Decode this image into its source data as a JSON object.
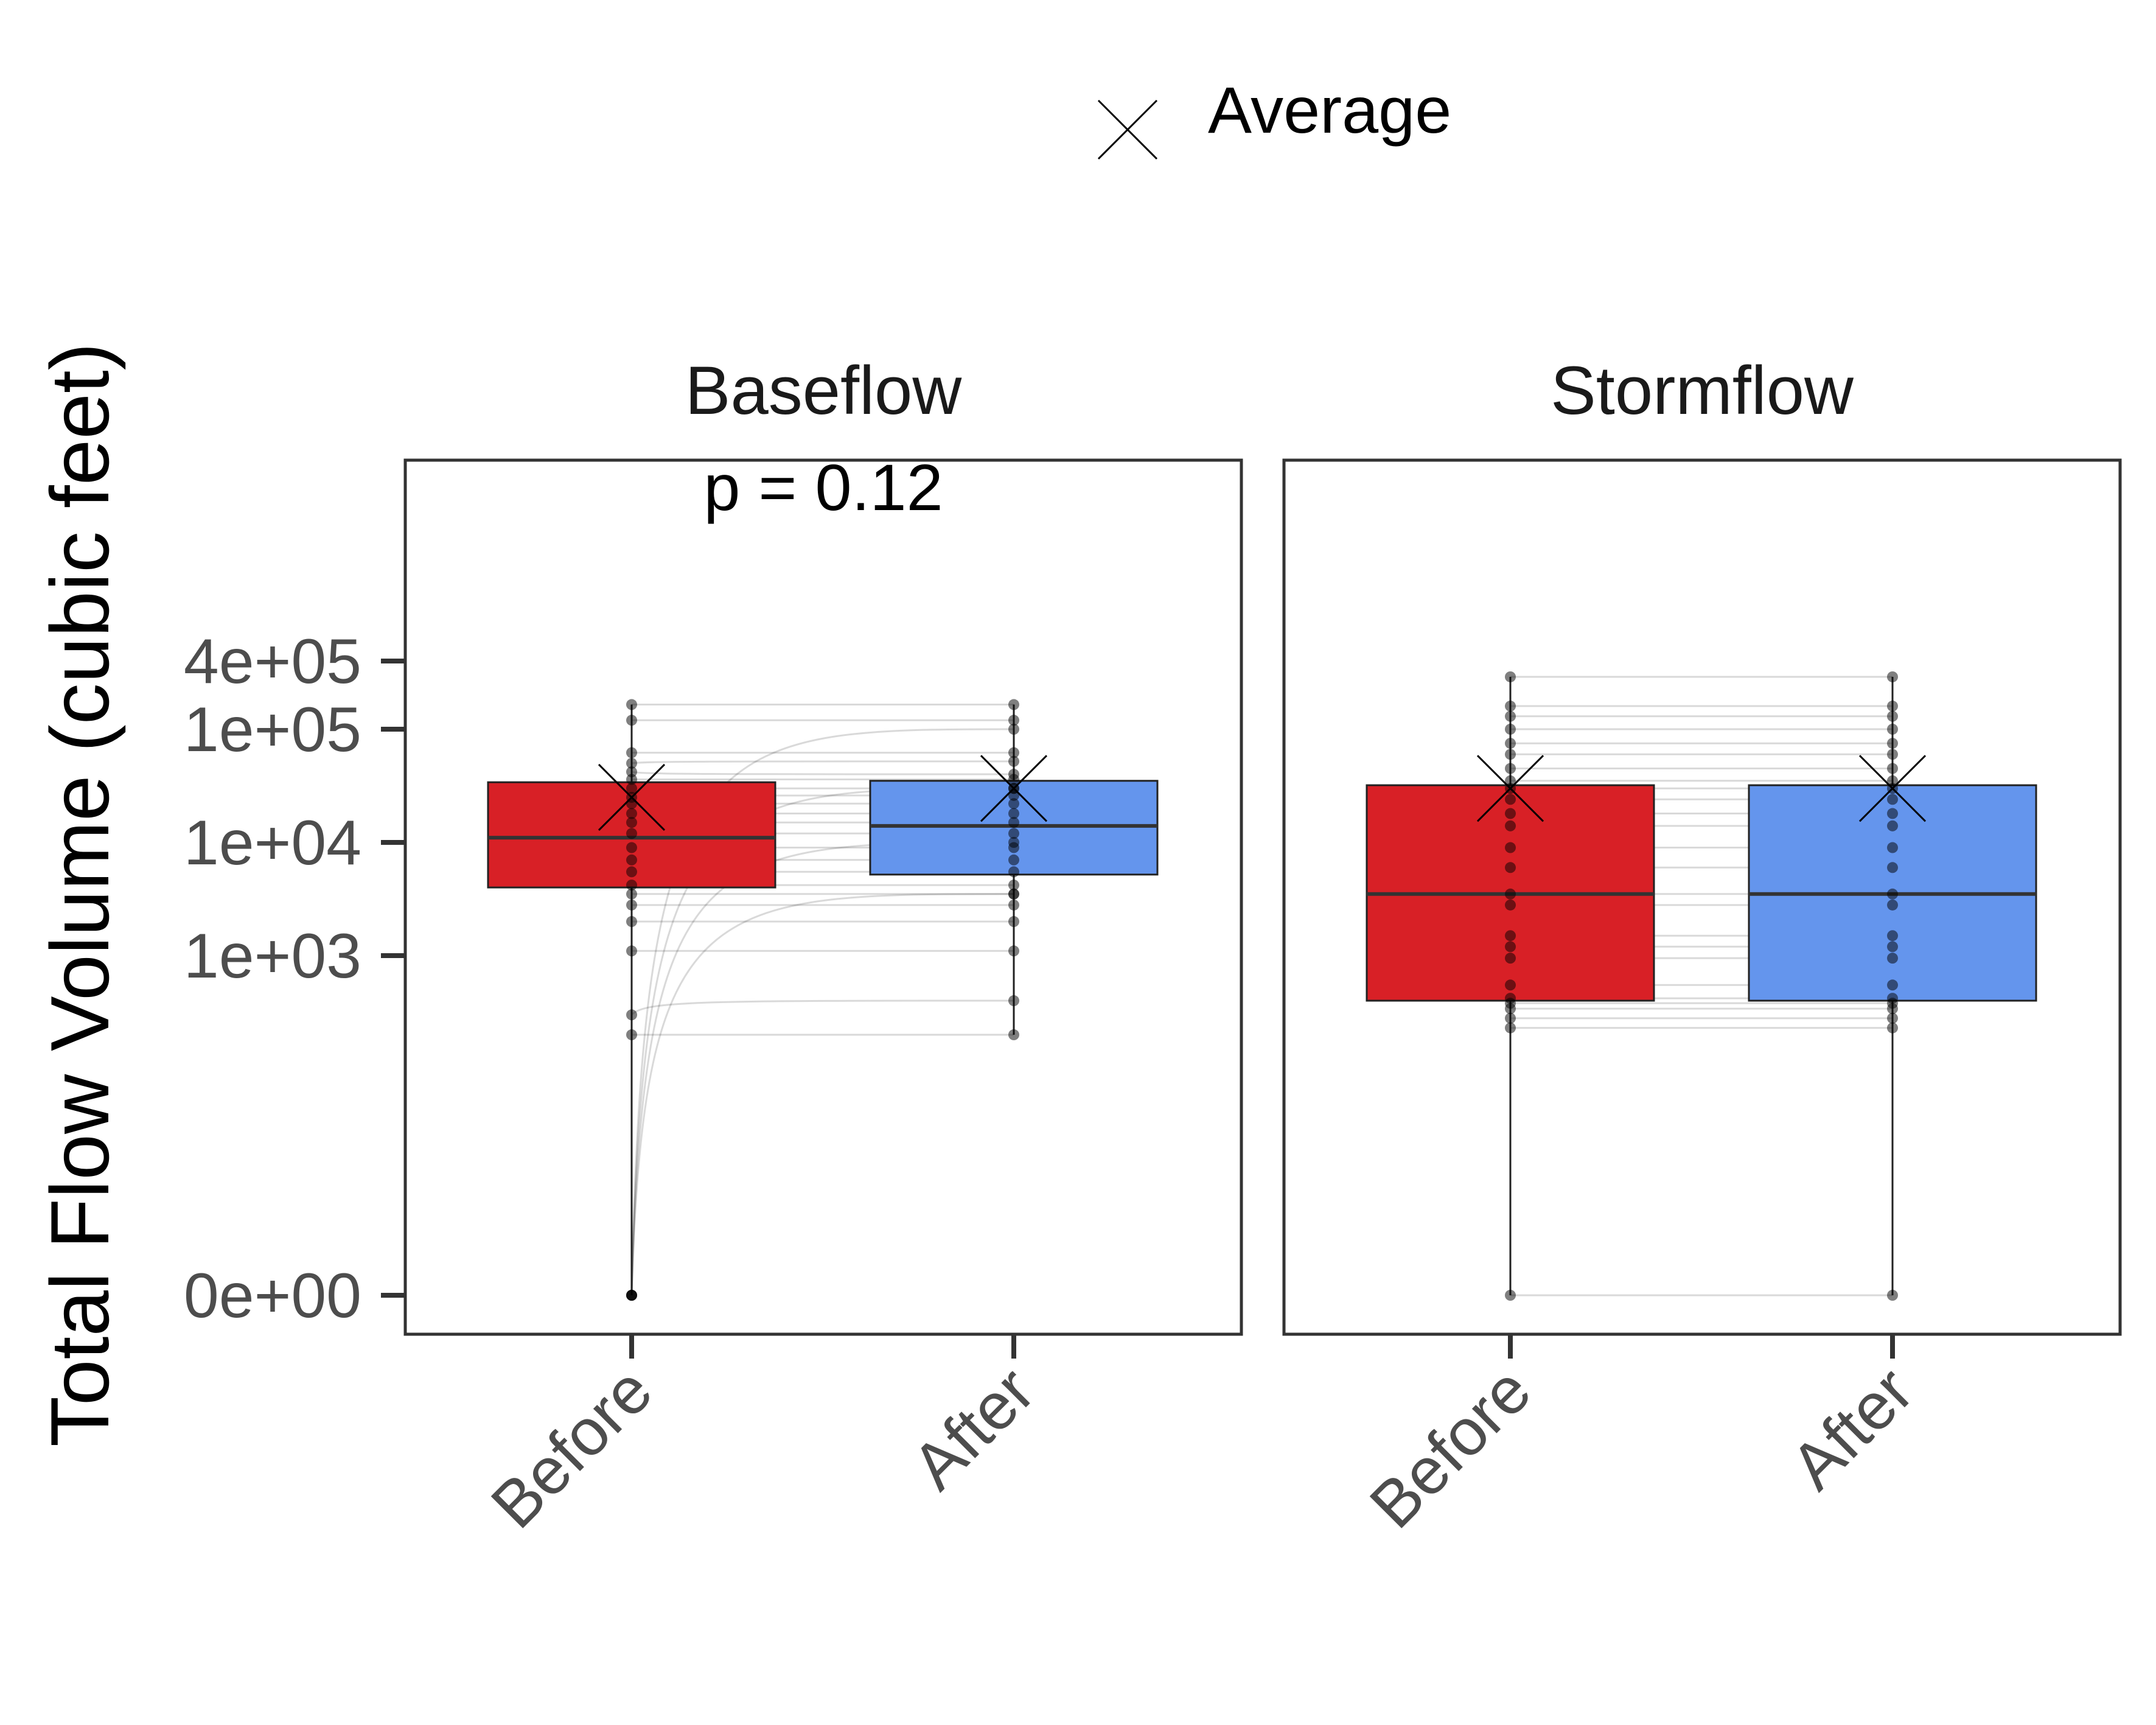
{
  "legend": {
    "label": "Average",
    "symbol": "x-icon"
  },
  "colors": {
    "before": "#D82026",
    "after": "#6495ED",
    "box_border": "#222222",
    "frame": "#333333",
    "tick_text": "#4D4D4D",
    "title_text": "#1A1A1A"
  },
  "chart_data": {
    "type": "box",
    "ylabel": "Total Flow Volume (cubic feet)",
    "yscale": "pseudo-log",
    "yticks": [
      {
        "label": "0e+00",
        "value": 0
      },
      {
        "label": "1e+03",
        "value": 1000
      },
      {
        "label": "1e+04",
        "value": 10000
      },
      {
        "label": "1e+05",
        "value": 100000
      },
      {
        "label": "4e+05",
        "value": 400000
      }
    ],
    "ylim": [
      0,
      2000000
    ],
    "categories": [
      "Before",
      "After"
    ],
    "panels": [
      {
        "title": "Baseflow",
        "annotation": "p = 0.12",
        "boxes": [
          {
            "group": "Before",
            "min": 0,
            "q1": 4000,
            "median": 11000,
            "q3": 34000,
            "max": 165000,
            "mean": 25000
          },
          {
            "group": "After",
            "min": 200,
            "q1": 5200,
            "median": 14000,
            "q3": 35000,
            "max": 165000,
            "mean": 30000
          }
        ],
        "pairs": [
          [
            165000,
            165000
          ],
          [
            120000,
            120000
          ],
          [
            62000,
            62000
          ],
          [
            50000,
            52000
          ],
          [
            42000,
            40000
          ],
          [
            36000,
            36000
          ],
          [
            30000,
            30000
          ],
          [
            25000,
            26000
          ],
          [
            22000,
            22000
          ],
          [
            18000,
            18000
          ],
          [
            15000,
            15000
          ],
          [
            12000,
            12000
          ],
          [
            9000,
            9000
          ],
          [
            7000,
            7000
          ],
          [
            5500,
            5500
          ],
          [
            4200,
            4200
          ],
          [
            3500,
            3500
          ],
          [
            2800,
            2800
          ],
          [
            2000,
            2000
          ],
          [
            1100,
            1100
          ],
          [
            300,
            400
          ],
          [
            200,
            200
          ],
          [
            0,
            100000
          ],
          [
            0,
            30000
          ],
          [
            0,
            10000
          ],
          [
            0,
            3500
          ]
        ]
      },
      {
        "title": "Stormflow",
        "annotation": "",
        "boxes": [
          {
            "group": "Before",
            "min": 0,
            "q1": 400,
            "median": 3500,
            "q3": 32000,
            "max": 290000,
            "mean": 30000
          },
          {
            "group": "After",
            "min": 0,
            "q1": 400,
            "median": 3500,
            "q3": 32000,
            "max": 290000,
            "mean": 30000
          }
        ],
        "pairs": [
          [
            290000,
            290000
          ],
          [
            160000,
            160000
          ],
          [
            130000,
            130000
          ],
          [
            100000,
            100000
          ],
          [
            75000,
            75000
          ],
          [
            60000,
            60000
          ],
          [
            45000,
            45000
          ],
          [
            35000,
            35000
          ],
          [
            30000,
            30000
          ],
          [
            24000,
            24000
          ],
          [
            18000,
            18000
          ],
          [
            14000,
            14000
          ],
          [
            9000,
            9000
          ],
          [
            6000,
            6000
          ],
          [
            3500,
            3500
          ],
          [
            2800,
            2800
          ],
          [
            1500,
            1500
          ],
          [
            1200,
            1200
          ],
          [
            950,
            950
          ],
          [
            550,
            550
          ],
          [
            420,
            420
          ],
          [
            380,
            380
          ],
          [
            340,
            340
          ],
          [
            280,
            280
          ],
          [
            230,
            230
          ],
          [
            0,
            0
          ]
        ]
      }
    ]
  }
}
